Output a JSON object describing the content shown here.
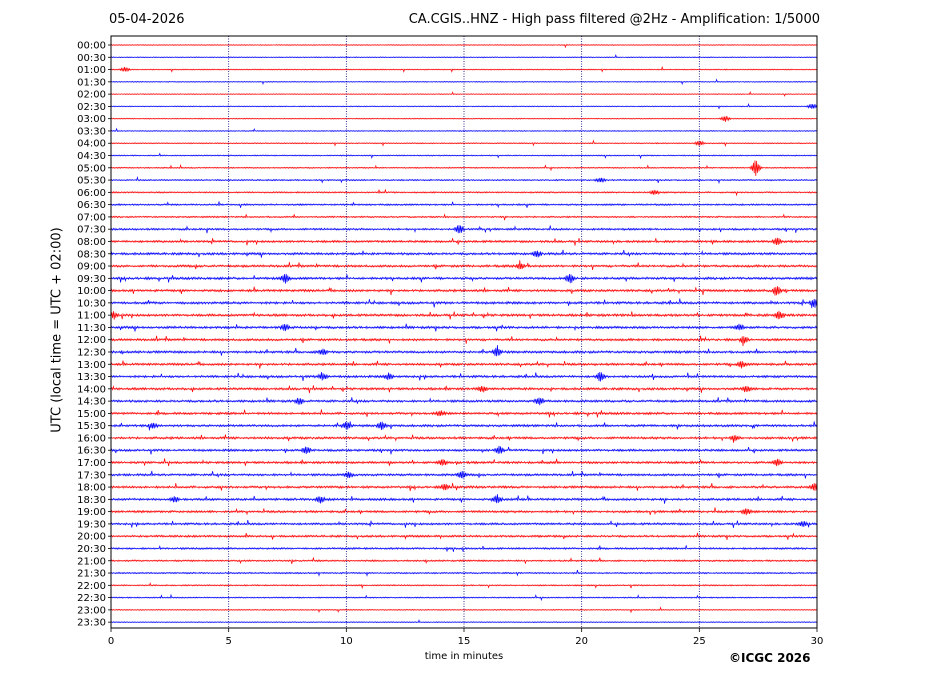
{
  "header": {
    "date": "05-04-2026",
    "title": "CA.CGIS..HNZ - High pass filtered @2Hz - Amplification: 1/5000"
  },
  "footer": {
    "copyright": "©ICGC 2026"
  },
  "colors": {
    "trace_even": "#ff0000",
    "trace_odd": "#0000ff",
    "grid": "#000080",
    "frame": "#000000"
  },
  "chart_data": {
    "type": "line",
    "title": "CA.CGIS..HNZ - High pass filtered @2Hz - Amplification: 1/5000",
    "xlabel": "time in minutes",
    "ylabel": "UTC (local time = UTC + 02:00)",
    "xlim": [
      0,
      30
    ],
    "xticks": [
      "0",
      "5",
      "10",
      "15",
      "20",
      "25",
      "30"
    ],
    "vertical_gridlines_at": [
      5,
      10,
      15,
      20,
      25
    ],
    "grid": "vertical dotted",
    "rows": [
      "00:00",
      "00:30",
      "01:00",
      "01:30",
      "02:00",
      "02:30",
      "03:00",
      "03:30",
      "04:00",
      "04:30",
      "05:00",
      "05:30",
      "06:00",
      "06:30",
      "07:00",
      "07:30",
      "08:00",
      "08:30",
      "09:00",
      "09:30",
      "10:00",
      "10:30",
      "11:00",
      "11:30",
      "12:00",
      "12:30",
      "13:00",
      "13:30",
      "14:00",
      "14:30",
      "15:00",
      "15:30",
      "16:00",
      "16:30",
      "17:00",
      "17:30",
      "18:00",
      "18:30",
      "19:00",
      "19:30",
      "20:00",
      "20:30",
      "21:00",
      "21:30",
      "22:00",
      "22:30",
      "23:00",
      "23:30"
    ],
    "noise_level": [
      0.2,
      0.2,
      0.25,
      0.2,
      0.15,
      0.2,
      0.2,
      0.25,
      0.3,
      0.3,
      0.35,
      0.45,
      0.5,
      0.6,
      0.55,
      0.75,
      0.9,
      0.95,
      0.95,
      1.0,
      1.0,
      1.0,
      1.0,
      1.0,
      0.95,
      1.0,
      0.95,
      0.95,
      0.95,
      0.95,
      0.95,
      0.95,
      0.95,
      0.9,
      0.9,
      0.9,
      0.95,
      0.95,
      0.9,
      0.85,
      0.8,
      0.7,
      0.6,
      0.5,
      0.4,
      0.35,
      0.25,
      0.2
    ],
    "events": [
      {
        "row": "01:00",
        "minute": 0.6,
        "amp": 2.5
      },
      {
        "row": "02:30",
        "minute": 29.8,
        "amp": 3
      },
      {
        "row": "03:00",
        "minute": 26.1,
        "amp": 3
      },
      {
        "row": "04:00",
        "minute": 25.0,
        "amp": 2.5
      },
      {
        "row": "05:00",
        "minute": 27.4,
        "amp": 8
      },
      {
        "row": "05:30",
        "minute": 20.8,
        "amp": 2.5
      },
      {
        "row": "06:00",
        "minute": 23.1,
        "amp": 2.5
      },
      {
        "row": "07:30",
        "minute": 14.8,
        "amp": 5
      },
      {
        "row": "08:00",
        "minute": 28.3,
        "amp": 4
      },
      {
        "row": "08:30",
        "minute": 18.1,
        "amp": 3.5
      },
      {
        "row": "09:00",
        "minute": 17.4,
        "amp": 3.5
      },
      {
        "row": "09:30",
        "minute": 7.4,
        "amp": 5
      },
      {
        "row": "09:30",
        "minute": 19.5,
        "amp": 5
      },
      {
        "row": "10:00",
        "minute": 28.3,
        "amp": 5
      },
      {
        "row": "10:30",
        "minute": 29.9,
        "amp": 5
      },
      {
        "row": "11:00",
        "minute": 28.4,
        "amp": 5
      },
      {
        "row": "11:00",
        "minute": 0.1,
        "amp": 4
      },
      {
        "row": "11:30",
        "minute": 7.4,
        "amp": 3.5
      },
      {
        "row": "11:30",
        "minute": 26.7,
        "amp": 3.5
      },
      {
        "row": "12:00",
        "minute": 26.9,
        "amp": 4
      },
      {
        "row": "12:30",
        "minute": 16.4,
        "amp": 4.5
      },
      {
        "row": "12:30",
        "minute": 9.0,
        "amp": 3.5
      },
      {
        "row": "13:00",
        "minute": 26.8,
        "amp": 3.5
      },
      {
        "row": "13:30",
        "minute": 20.8,
        "amp": 5
      },
      {
        "row": "13:30",
        "minute": 9.0,
        "amp": 3.5
      },
      {
        "row": "13:30",
        "minute": 11.8,
        "amp": 3.5
      },
      {
        "row": "14:00",
        "minute": 15.8,
        "amp": 3.5
      },
      {
        "row": "14:00",
        "minute": 27.0,
        "amp": 3.5
      },
      {
        "row": "14:30",
        "minute": 18.2,
        "amp": 4
      },
      {
        "row": "14:30",
        "minute": 8.0,
        "amp": 3.5
      },
      {
        "row": "15:00",
        "minute": 14.0,
        "amp": 3
      },
      {
        "row": "15:30",
        "minute": 10.0,
        "amp": 4
      },
      {
        "row": "15:30",
        "minute": 11.5,
        "amp": 4
      },
      {
        "row": "15:30",
        "minute": 1.8,
        "amp": 3
      },
      {
        "row": "16:00",
        "minute": 26.5,
        "amp": 3
      },
      {
        "row": "16:30",
        "minute": 8.3,
        "amp": 4
      },
      {
        "row": "16:30",
        "minute": 16.5,
        "amp": 4
      },
      {
        "row": "17:00",
        "minute": 14.1,
        "amp": 3
      },
      {
        "row": "17:00",
        "minute": 28.3,
        "amp": 3.5
      },
      {
        "row": "17:30",
        "minute": 14.9,
        "amp": 4
      },
      {
        "row": "17:30",
        "minute": 10.1,
        "amp": 3
      },
      {
        "row": "18:00",
        "minute": 14.2,
        "amp": 3.5
      },
      {
        "row": "18:00",
        "minute": 29.9,
        "amp": 4
      },
      {
        "row": "18:30",
        "minute": 16.4,
        "amp": 4.5
      },
      {
        "row": "18:30",
        "minute": 8.9,
        "amp": 4
      },
      {
        "row": "18:30",
        "minute": 2.7,
        "amp": 3
      },
      {
        "row": "19:00",
        "minute": 27.0,
        "amp": 3.5
      },
      {
        "row": "19:30",
        "minute": 29.4,
        "amp": 3
      }
    ]
  }
}
